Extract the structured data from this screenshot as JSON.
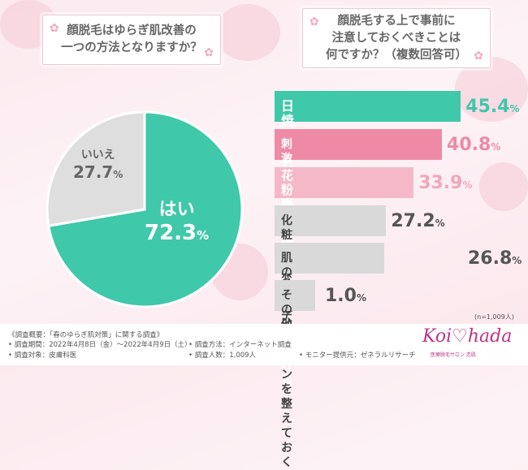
{
  "left_question": "顔脱毛はゆらぎ肌改善の\n一つの方法となりますか？",
  "right_question": "顔脱毛する上で事前に\n注意しておくべきことは\n何ですか？（複数回答可）",
  "sample_size": "(n=1,009人)",
  "colors": {
    "accent": "#3fc8a9",
    "pink_dark": "#ef8aa6",
    "pink_mid": "#f2a6bb",
    "pink_light": "#f5b8c9",
    "gray": "#d9d9d9"
  },
  "chart_data": [
    {
      "type": "pie",
      "slices": [
        {
          "label": "はい",
          "value": 72.3,
          "display": "72.3",
          "unit": "%",
          "color": "#3fc8a9"
        },
        {
          "label": "いいえ",
          "value": 27.7,
          "display": "27.7",
          "unit": "%",
          "color": "#dedede"
        }
      ]
    },
    {
      "type": "bar",
      "orientation": "horizontal",
      "categories": [
        "日焼けをしないようにする",
        "刺激物を取らない",
        "花粉やホコリを\nできる限り避ける",
        "化粧品を変えない",
        "肌のコンディションを整えておく",
        "その他"
      ],
      "values": [
        45.4,
        40.8,
        33.9,
        27.2,
        26.8,
        1.0
      ],
      "display": [
        "45.4",
        "40.8",
        "33.9",
        "27.2",
        "26.8",
        "1.0"
      ],
      "unit": "%",
      "colors": [
        "#3fc8a9",
        "#ef8aa6",
        "#f5b8c9",
        "#d9d9d9",
        "#d9d9d9",
        "#d9d9d9"
      ]
    }
  ],
  "footer": {
    "overview": "《調査概要：「春のゆらぎ肌対策」に関する調査》",
    "period": "• 調査期間：2022年4月8日（金）〜2022年4月9日（土）",
    "method": "• 調査方法：インターネット調査",
    "target": "• 調査対象：皮膚科医",
    "count": "• 調査人数：1,009人",
    "monitor": "• モニター提供元：ゼネラルリサーチ",
    "logo": "Koi♡hada",
    "logo_sub": "医療脱毛サロン 恋肌"
  }
}
